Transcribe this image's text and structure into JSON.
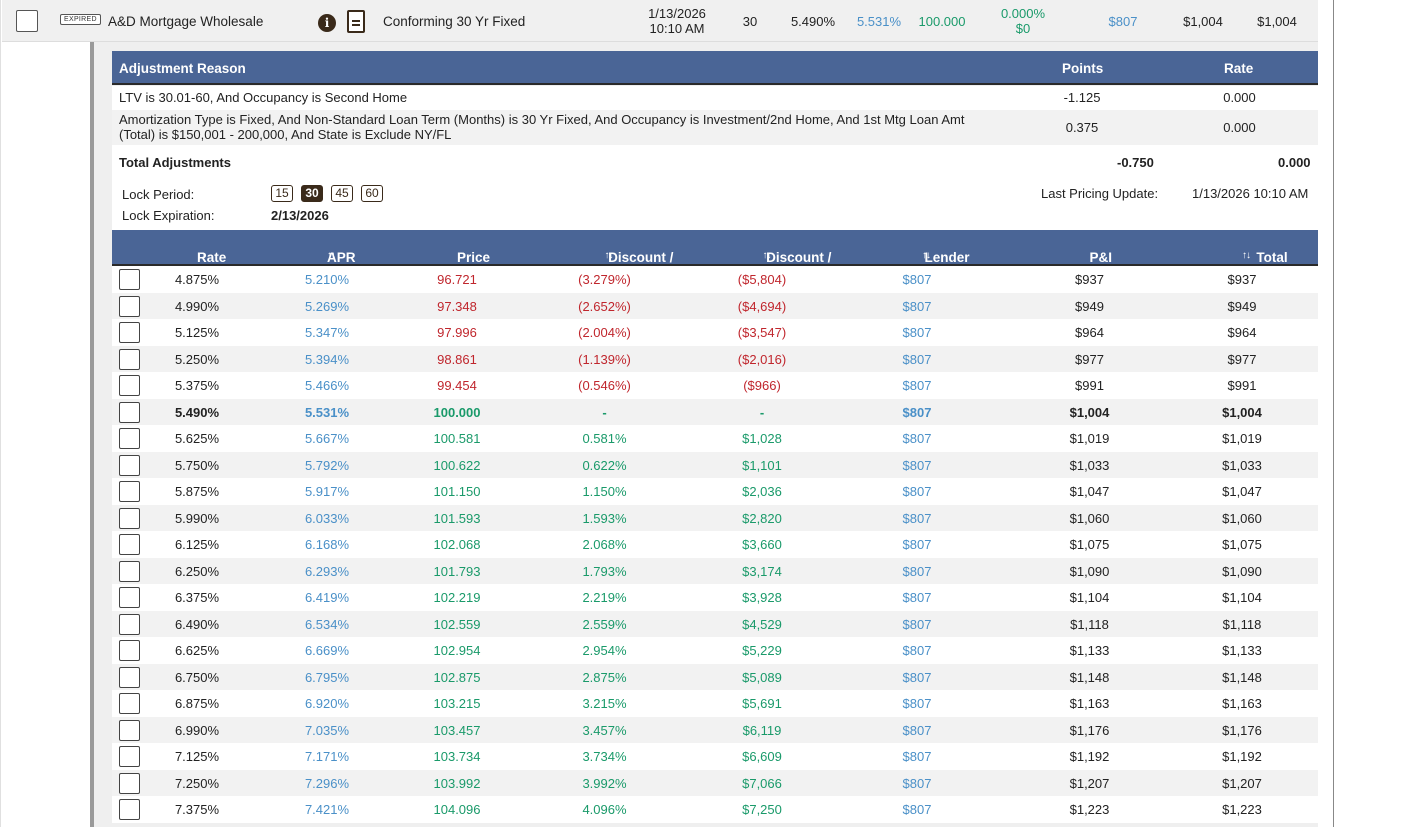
{
  "top_row": {
    "badge": "EXPIRED",
    "lender": "A&D Mortgage Wholesale",
    "info_icon": "i",
    "product": "Conforming 30 Yr Fixed",
    "date": "1/13/2026",
    "time": "10:10 AM",
    "lock_days": "30",
    "rate": "5.490%",
    "apr": "5.531%",
    "price": "100.000",
    "discount_pct": "0.000%",
    "discount_dol": "$0",
    "lender_fees": "$807",
    "pi": "$1,004",
    "total_payment": "$1,004"
  },
  "adjustments": {
    "header": {
      "reason": "Adjustment Reason",
      "points": "Points",
      "rate": "Rate"
    },
    "rows": [
      {
        "reason_line1": "LTV is 30.01-60, And Occupancy is Second Home",
        "reason_line2": "",
        "points": "-1.125",
        "rate": "0.000"
      },
      {
        "reason_line1": "Amortization Type is Fixed, And Non-Standard Loan Term (Months) is 30 Yr Fixed, And Occupancy is Investment/2nd Home, And 1st Mtg Loan Amt",
        "reason_line2": "(Total) is $150,001 - 200,000, And State is Exclude NY/FL",
        "points": "0.375",
        "rate": "0.000"
      }
    ],
    "total": {
      "label": "Total Adjustments",
      "points": "-0.750",
      "rate": "0.000"
    }
  },
  "lock": {
    "period_label": "Lock Period:",
    "periods": [
      "15",
      "30",
      "45",
      "60"
    ],
    "selected": "30",
    "expiration_label": "Lock Expiration:",
    "expiration": "2/13/2026",
    "last_update_label": "Last Pricing Update:",
    "last_update": "1/13/2026 10:10 AM"
  },
  "rate_table": {
    "headers": {
      "rate": "Rate",
      "apr": "APR",
      "price": "Price",
      "discount_pct": "Discount / Rebate %",
      "discount_dol": "Discount / Rebate $",
      "lender_fees": "Lender Fees",
      "pi": "P&I",
      "total": "Total Payment"
    },
    "sort_glyph": "↑↓",
    "colors": {
      "negative": "#c0262d",
      "positive": "#1a9a6a",
      "link": "#4a90c8",
      "header": "#4a6596"
    },
    "rows": [
      [
        "4.875%",
        "5.210%",
        "96.721",
        "(3.279%)",
        "($5,804)",
        "$807",
        "$937",
        "$937",
        "neg"
      ],
      [
        "4.990%",
        "5.269%",
        "97.348",
        "(2.652%)",
        "($4,694)",
        "$807",
        "$949",
        "$949",
        "neg"
      ],
      [
        "5.125%",
        "5.347%",
        "97.996",
        "(2.004%)",
        "($3,547)",
        "$807",
        "$964",
        "$964",
        "neg"
      ],
      [
        "5.250%",
        "5.394%",
        "98.861",
        "(1.139%)",
        "($2,016)",
        "$807",
        "$977",
        "$977",
        "neg"
      ],
      [
        "5.375%",
        "5.466%",
        "99.454",
        "(0.546%)",
        "($966)",
        "$807",
        "$991",
        "$991",
        "neg"
      ],
      [
        "5.490%",
        "5.531%",
        "100.000",
        "-",
        "-",
        "$807",
        "$1,004",
        "$1,004",
        "par"
      ],
      [
        "5.625%",
        "5.667%",
        "100.581",
        "0.581%",
        "$1,028",
        "$807",
        "$1,019",
        "$1,019",
        "pos"
      ],
      [
        "5.750%",
        "5.792%",
        "100.622",
        "0.622%",
        "$1,101",
        "$807",
        "$1,033",
        "$1,033",
        "pos"
      ],
      [
        "5.875%",
        "5.917%",
        "101.150",
        "1.150%",
        "$2,036",
        "$807",
        "$1,047",
        "$1,047",
        "pos"
      ],
      [
        "5.990%",
        "6.033%",
        "101.593",
        "1.593%",
        "$2,820",
        "$807",
        "$1,060",
        "$1,060",
        "pos"
      ],
      [
        "6.125%",
        "6.168%",
        "102.068",
        "2.068%",
        "$3,660",
        "$807",
        "$1,075",
        "$1,075",
        "pos"
      ],
      [
        "6.250%",
        "6.293%",
        "101.793",
        "1.793%",
        "$3,174",
        "$807",
        "$1,090",
        "$1,090",
        "pos"
      ],
      [
        "6.375%",
        "6.419%",
        "102.219",
        "2.219%",
        "$3,928",
        "$807",
        "$1,104",
        "$1,104",
        "pos"
      ],
      [
        "6.490%",
        "6.534%",
        "102.559",
        "2.559%",
        "$4,529",
        "$807",
        "$1,118",
        "$1,118",
        "pos"
      ],
      [
        "6.625%",
        "6.669%",
        "102.954",
        "2.954%",
        "$5,229",
        "$807",
        "$1,133",
        "$1,133",
        "pos"
      ],
      [
        "6.750%",
        "6.795%",
        "102.875",
        "2.875%",
        "$5,089",
        "$807",
        "$1,148",
        "$1,148",
        "pos"
      ],
      [
        "6.875%",
        "6.920%",
        "103.215",
        "3.215%",
        "$5,691",
        "$807",
        "$1,163",
        "$1,163",
        "pos"
      ],
      [
        "6.990%",
        "7.035%",
        "103.457",
        "3.457%",
        "$6,119",
        "$807",
        "$1,176",
        "$1,176",
        "pos"
      ],
      [
        "7.125%",
        "7.171%",
        "103.734",
        "3.734%",
        "$6,609",
        "$807",
        "$1,192",
        "$1,192",
        "pos"
      ],
      [
        "7.250%",
        "7.296%",
        "103.992",
        "3.992%",
        "$7,066",
        "$807",
        "$1,207",
        "$1,207",
        "pos"
      ],
      [
        "7.375%",
        "7.421%",
        "104.096",
        "4.096%",
        "$7,250",
        "$807",
        "$1,223",
        "$1,223",
        "pos"
      ]
    ]
  }
}
